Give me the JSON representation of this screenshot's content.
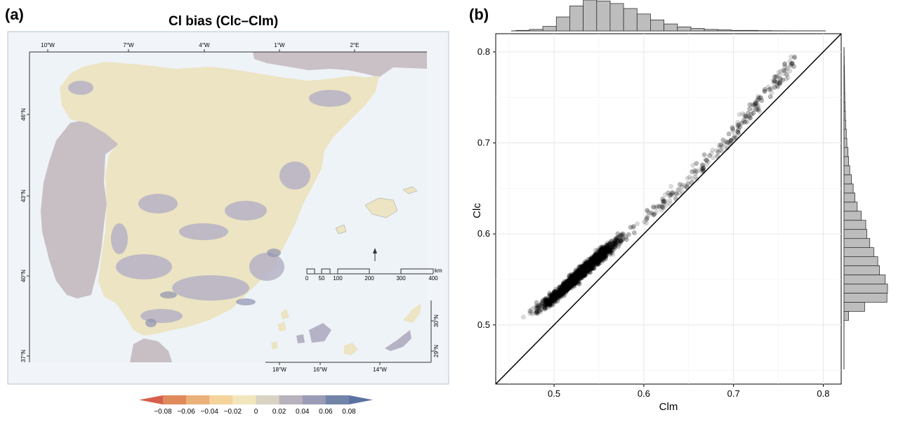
{
  "panel_a": {
    "letter": "(a)",
    "title": "Cl bias (Clc–Clm)",
    "lon_ticks": [
      "10°W",
      "7°W",
      "4°W",
      "1°W",
      "2°E"
    ],
    "lat_ticks": [
      "46°N",
      "43°N",
      "40°N",
      "37°N"
    ],
    "scalebar_labels": [
      "0",
      "50",
      "100",
      "200",
      "300",
      "400"
    ],
    "scalebar_unit": "km",
    "canary_lon_ticks": [
      "18°W",
      "16°W",
      "14°W"
    ],
    "canary_lat_ticks": [
      "30°N",
      "29°N"
    ],
    "colorbar": {
      "labels": [
        "−0.08",
        "−0.06",
        "−0.04",
        "−0.02",
        "0",
        "0.02",
        "0.04",
        "0.06",
        "0.08"
      ],
      "colors": [
        "#d6604d",
        "#e08b5c",
        "#eab07a",
        "#f4d49c",
        "#f2e6bd",
        "#d9d3c4",
        "#b8b2bd",
        "#9a9bb4",
        "#7284a8",
        "#5a73a3"
      ]
    },
    "colors": {
      "land_bias": "#ece4c2",
      "land_bias_high": "#b6b2c6",
      "neighbour_land": "#c8c0c4",
      "sea": "#eef3f7",
      "frame_bg": "#f1f4f8"
    }
  },
  "panel_b": {
    "letter": "(b)",
    "chart_data": {
      "type": "scatter",
      "xlabel": "Clm",
      "ylabel": "Clc",
      "xlim": [
        0.435,
        0.82
      ],
      "ylim": [
        0.435,
        0.82
      ],
      "x_ticks": [
        0.5,
        0.6,
        0.7,
        0.8
      ],
      "y_ticks": [
        0.5,
        0.6,
        0.7,
        0.8
      ],
      "grid": true,
      "reference_line": "1:1",
      "point_color": "#000000",
      "point_alpha": 0.15,
      "point_cloud": {
        "x_range": [
          0.46,
          0.77
        ],
        "y_at_x": [
          [
            0.46,
            0.505
          ],
          [
            0.5,
            0.53
          ],
          [
            0.55,
            0.575
          ],
          [
            0.6,
            0.615
          ],
          [
            0.65,
            0.66
          ],
          [
            0.7,
            0.71
          ],
          [
            0.77,
            0.795
          ]
        ],
        "spread": 0.03
      },
      "x_histogram": {
        "bins": [
          0.465,
          0.48,
          0.495,
          0.51,
          0.525,
          0.54,
          0.555,
          0.57,
          0.585,
          0.6,
          0.615,
          0.63,
          0.645,
          0.66,
          0.675,
          0.69,
          0.705,
          0.72,
          0.735,
          0.75,
          0.765
        ],
        "values": [
          1,
          3,
          9,
          28,
          50,
          62,
          60,
          55,
          45,
          34,
          22,
          14,
          8,
          5,
          3,
          2,
          1,
          1,
          0.5,
          0.3,
          0.2
        ]
      },
      "y_histogram": {
        "bins": [
          0.51,
          0.52,
          0.53,
          0.54,
          0.55,
          0.56,
          0.57,
          0.58,
          0.59,
          0.6,
          0.61,
          0.62,
          0.63,
          0.64,
          0.65,
          0.66,
          0.67,
          0.68,
          0.69,
          0.7,
          0.71,
          0.72,
          0.73,
          0.74,
          0.75,
          0.76,
          0.77,
          0.78,
          0.79,
          0.8
        ],
        "values": [
          8,
          36,
          75,
          76,
          72,
          62,
          59,
          52,
          45,
          40,
          38,
          30,
          23,
          19,
          16,
          13,
          10,
          8,
          7,
          5,
          4,
          3,
          2.5,
          2,
          1.5,
          1.2,
          1,
          0.8,
          0.5,
          0.3
        ]
      }
    }
  }
}
